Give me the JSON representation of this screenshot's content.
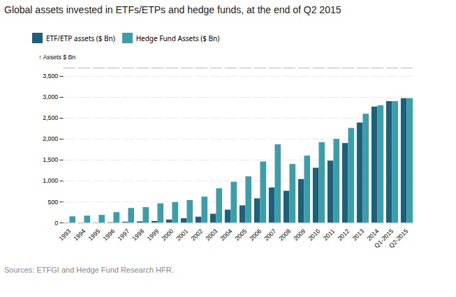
{
  "chart_data": {
    "type": "bar",
    "title": "Global assets invested in ETFs/ETPs and hedge funds, at the end of Q2 2015",
    "ylabel": "Assets $ Bn",
    "source": "Sources: ETFGI and Hedge Fund Research HFR.",
    "categories": [
      "1993",
      "1994",
      "1995",
      "1996",
      "1997",
      "1998",
      "1999",
      "2000",
      "2001",
      "2002",
      "2003",
      "2004",
      "2005",
      "2006",
      "2007",
      "2008",
      "2009",
      "2010",
      "2011",
      "2012",
      "2013",
      "2014",
      "Q1-2015",
      "Q2-2015"
    ],
    "series": [
      {
        "name": "ETF/ETP assets ($ Bn)",
        "color": "#1d6079",
        "values": [
          1,
          1,
          2,
          10,
          20,
          30,
          40,
          74,
          105,
          142,
          212,
          310,
          412,
          580,
          840,
          760,
          1040,
          1310,
          1480,
          1900,
          2390,
          2770,
          2900,
          2970
        ]
      },
      {
        "name": "Hedge Fund Assets ($ Bn)",
        "color": "#3a9faa",
        "values": [
          150,
          167,
          185,
          250,
          350,
          370,
          460,
          490,
          540,
          620,
          820,
          975,
          1105,
          1460,
          1870,
          1400,
          1600,
          1920,
          2000,
          2260,
          2600,
          2800,
          2900,
          2970
        ]
      }
    ],
    "ylim": [
      0,
      3700
    ],
    "yticks": [
      0,
      500,
      {
        "value": 1000,
        "label": "1,000"
      },
      {
        "value": 1500,
        "label": "1,500"
      },
      {
        "value": 2000,
        "label": "2,000"
      },
      {
        "value": 2500,
        "label": "2,500"
      },
      {
        "value": 3000,
        "label": "3,000"
      },
      {
        "value": 3500,
        "label": "3,500"
      }
    ],
    "grid": true,
    "legend": "top"
  }
}
